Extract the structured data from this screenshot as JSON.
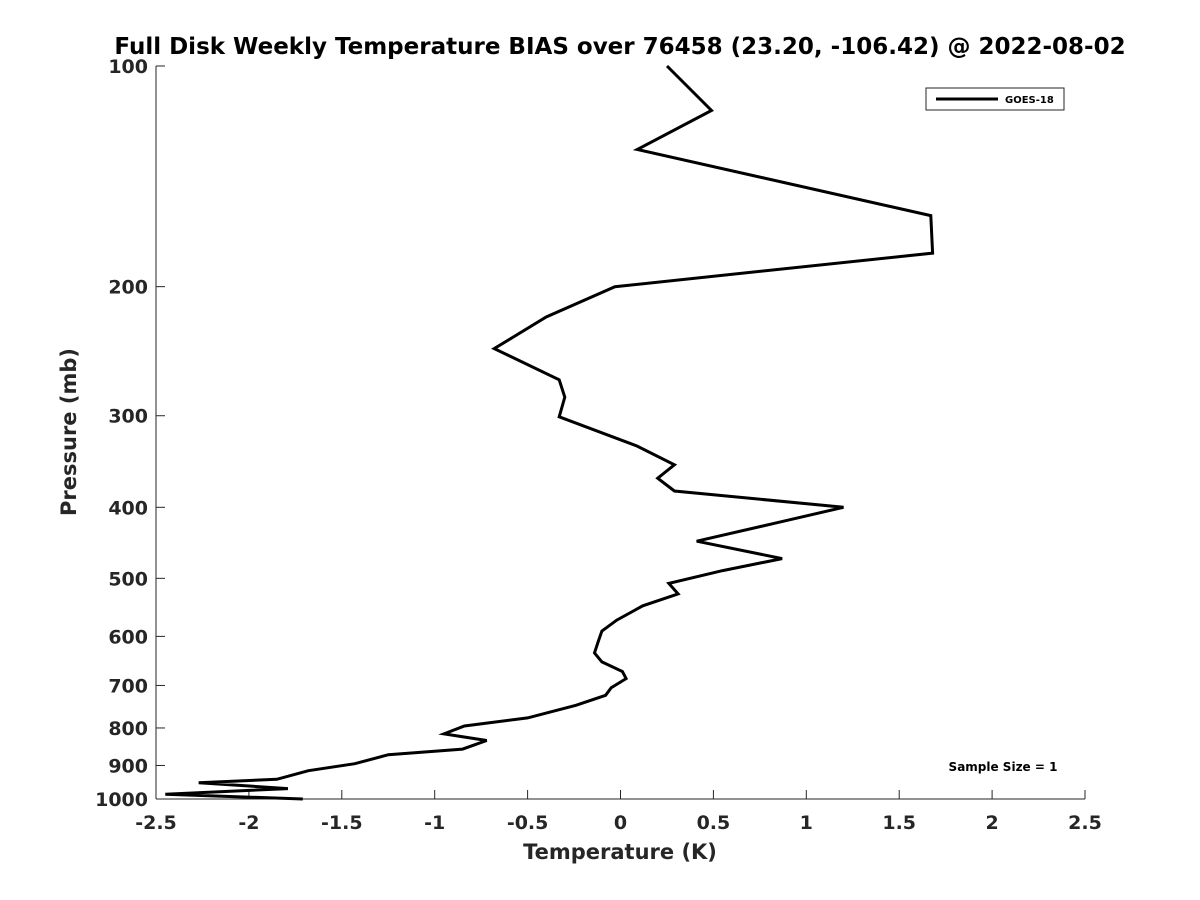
{
  "chart_data": {
    "type": "line",
    "title": "Full Disk Weekly Temperature BIAS over 76458 (23.20, -106.42) @ 2022-08-02",
    "xlabel": "Temperature (K)",
    "ylabel": "Pressure (mb)",
    "xlim": [
      -2.5,
      2.5
    ],
    "ylim": [
      100,
      1000
    ],
    "y_scale": "log",
    "y_reversed": true,
    "x_ticks": [
      "-2.5",
      "-2",
      "-1.5",
      "-1",
      "-0.5",
      "0",
      "0.5",
      "1",
      "1.5",
      "2",
      "2.5"
    ],
    "x_tick_values": [
      -2.5,
      -2,
      -1.5,
      -1,
      -0.5,
      0,
      0.5,
      1,
      1.5,
      2,
      2.5
    ],
    "y_ticks": [
      "100",
      "200",
      "300",
      "400",
      "500",
      "600",
      "700",
      "800",
      "900",
      "1000"
    ],
    "y_tick_values": [
      100,
      200,
      300,
      400,
      500,
      600,
      700,
      800,
      900,
      1000
    ],
    "grid": false,
    "legend_position": "top-right",
    "series": [
      {
        "name": "GOES-18",
        "color": "#000000",
        "points": [
          [
            0.25,
            100
          ],
          [
            0.49,
            115
          ],
          [
            0.09,
            130
          ],
          [
            1.67,
            160
          ],
          [
            1.68,
            180
          ],
          [
            -0.03,
            200
          ],
          [
            -0.4,
            220
          ],
          [
            -0.68,
            243
          ],
          [
            -0.33,
            268
          ],
          [
            -0.3,
            283
          ],
          [
            -0.33,
            301
          ],
          [
            0.09,
            330
          ],
          [
            0.29,
            350
          ],
          [
            0.2,
            365
          ],
          [
            0.29,
            380
          ],
          [
            1.2,
            400
          ],
          [
            0.84,
            420
          ],
          [
            0.41,
            445
          ],
          [
            0.87,
            470
          ],
          [
            0.55,
            488
          ],
          [
            0.26,
            508
          ],
          [
            0.31,
            525
          ],
          [
            0.12,
            545
          ],
          [
            -0.02,
            570
          ],
          [
            -0.1,
            590
          ],
          [
            -0.12,
            610
          ],
          [
            -0.14,
            632
          ],
          [
            -0.1,
            650
          ],
          [
            0.01,
            670
          ],
          [
            0.03,
            685
          ],
          [
            -0.05,
            705
          ],
          [
            -0.08,
            722
          ],
          [
            -0.24,
            745
          ],
          [
            -0.5,
            775
          ],
          [
            -0.84,
            795
          ],
          [
            -0.95,
            815
          ],
          [
            -0.72,
            832
          ],
          [
            -0.85,
            855
          ],
          [
            -1.25,
            870
          ],
          [
            -1.43,
            895
          ],
          [
            -1.68,
            915
          ],
          [
            -1.85,
            940
          ],
          [
            -2.27,
            950
          ],
          [
            -1.79,
            968
          ],
          [
            -2.45,
            985
          ],
          [
            -1.71,
            1000
          ]
        ]
      }
    ],
    "annotation": "Sample Size = 1"
  }
}
